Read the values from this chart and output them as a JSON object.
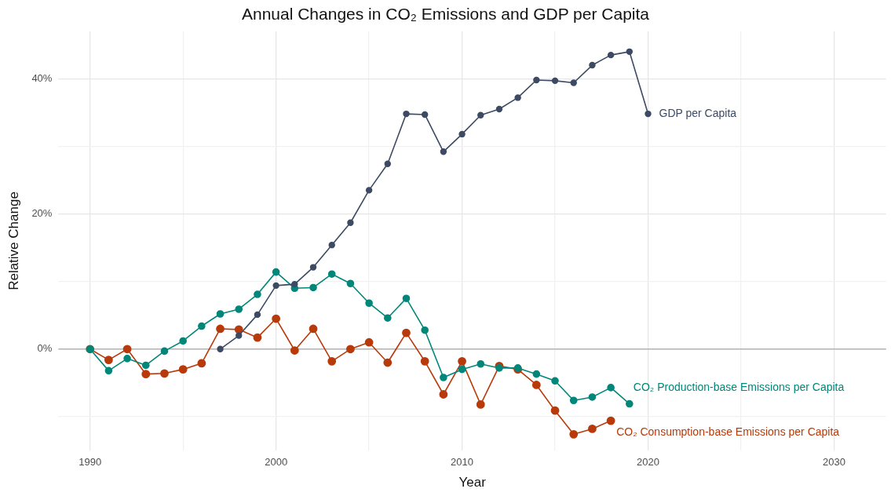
{
  "chart_data": {
    "type": "line",
    "title": "Annual Changes in CO₂ Emissions and GDP per Capita",
    "xlabel": "Year",
    "ylabel": "Relative Change",
    "xlim": [
      1988.3,
      2032.8
    ],
    "xticks": [
      1990,
      {
        "value": 1995,
        "label": null
      },
      2000,
      {
        "value": 2005,
        "label": null
      },
      2010,
      {
        "value": 2015,
        "label": null
      },
      2020,
      {
        "value": 2025,
        "label": null
      },
      2030
    ],
    "ylim": [
      -15,
      47
    ],
    "yticks": [
      {
        "value": -10,
        "label": null
      },
      {
        "value": 0,
        "label": "0%"
      },
      {
        "value": 10,
        "label": null
      },
      {
        "value": 20,
        "label": "20%"
      },
      {
        "value": 30,
        "label": null
      },
      {
        "value": 40,
        "label": "40%"
      }
    ],
    "grid": true,
    "legend": false,
    "marker": "circle",
    "line_style": "solid",
    "ref_lines": [
      {
        "axis": "y",
        "value": 0,
        "color": "#b3b3b3"
      }
    ],
    "series": [
      {
        "name": "GDP per Capita",
        "color": "#3d4a63",
        "x": [
          1997,
          1998,
          1999,
          2000,
          2001,
          2002,
          2003,
          2004,
          2005,
          2006,
          2007,
          2008,
          2009,
          2010,
          2011,
          2012,
          2013,
          2014,
          2015,
          2016,
          2017,
          2018,
          2019,
          2020
        ],
        "values": [
          0,
          2.0,
          5.1,
          9.4,
          9.6,
          12.1,
          15.4,
          18.7,
          23.5,
          27.4,
          34.8,
          34.7,
          29.2,
          31.8,
          34.6,
          35.5,
          37.2,
          39.8,
          39.7,
          39.4,
          42.0,
          43.5,
          44.0,
          34.8
        ]
      },
      {
        "name": "CO₂ Production-base Emissions per Capita",
        "color": "#00877a",
        "x": [
          1990,
          1991,
          1992,
          1993,
          1994,
          1995,
          1996,
          1997,
          1998,
          1999,
          2000,
          2001,
          2002,
          2003,
          2004,
          2005,
          2006,
          2007,
          2008,
          2009,
          2010,
          2011,
          2012,
          2013,
          2014,
          2015,
          2016,
          2017,
          2018,
          2019
        ],
        "values": [
          0,
          -3.2,
          -1.4,
          -2.4,
          -0.3,
          1.2,
          3.4,
          5.2,
          5.9,
          8.1,
          11.4,
          9.0,
          9.1,
          11.1,
          9.7,
          6.8,
          4.6,
          7.5,
          2.8,
          -4.2,
          -3.0,
          -2.2,
          -2.8,
          -2.8,
          -3.7,
          -4.7,
          -7.6,
          -7.1,
          -5.7,
          -8.1
        ]
      },
      {
        "name": "CO₂ Consumption-base Emissions per Capita",
        "color": "#b83a0b",
        "x": [
          1990,
          1991,
          1992,
          1993,
          1994,
          1995,
          1996,
          1997,
          1998,
          1999,
          2000,
          2001,
          2002,
          2003,
          2004,
          2005,
          2006,
          2007,
          2008,
          2009,
          2010,
          2011,
          2012,
          2013,
          2014,
          2015,
          2016,
          2017,
          2018
        ],
        "values": [
          0,
          -1.6,
          0,
          -3.7,
          -3.6,
          -3.0,
          -2.1,
          3.0,
          2.9,
          1.7,
          4.5,
          -0.2,
          3.0,
          -1.8,
          0,
          1.0,
          -2.0,
          2.4,
          -1.8,
          -6.7,
          -1.8,
          -8.2,
          -2.5,
          -3.0,
          -5.3,
          -9.1,
          -12.6,
          -11.8,
          -10.6
        ]
      }
    ]
  }
}
